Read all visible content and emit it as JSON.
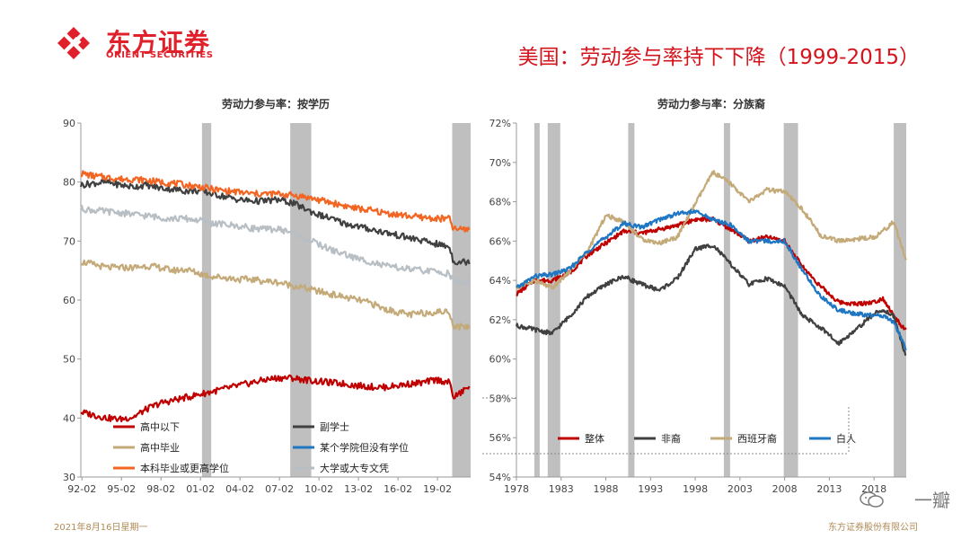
{
  "header": {
    "brand_cn": "东方证券",
    "brand_en": "ORIENT SECURITIES",
    "title": "美国：劳动参与率持下下降（1999-2015）"
  },
  "footer": {
    "date": "2021年8月16日星期一",
    "company": "东方证券股份有限公司",
    "watermark": "一瓣"
  },
  "colors": {
    "brand_red": "#e0202a",
    "title_red": "#d4141c",
    "dark_red": "#c00000",
    "dark_gray": "#404040",
    "tan": "#c4aa78",
    "blue": "#1f77c4",
    "orange": "#f26522",
    "light_gray": "#b7bec4",
    "recession": "#bfbfbf"
  },
  "chart_data": [
    {
      "type": "line",
      "title": "劳动力参与率：按学历",
      "xlabel": "",
      "ylabel": "",
      "x_ticks": [
        "92-02",
        "95-02",
        "98-02",
        "01-02",
        "04-02",
        "07-02",
        "10-02",
        "13-02",
        "16-02",
        "19-02"
      ],
      "y_ticks": [
        30,
        40,
        50,
        60,
        70,
        80,
        90
      ],
      "xlim": [
        1992.0,
        2021.6
      ],
      "ylim": [
        30,
        90
      ],
      "recessions": [
        [
          2001.2,
          2001.9
        ],
        [
          2007.9,
          2009.5
        ],
        [
          2020.2,
          2021.6
        ]
      ],
      "series": [
        {
          "name": "高中以下",
          "color": "#c00000",
          "x": [
            1992,
            1993,
            1994,
            1995,
            1996,
            1997,
            1998,
            1999,
            2000,
            2001,
            2002,
            2003,
            2004,
            2005,
            2006,
            2007,
            2008,
            2009,
            2010,
            2011,
            2012,
            2013,
            2014,
            2015,
            2016,
            2017,
            2018,
            2019,
            2020,
            2020.3,
            2021,
            2021.5
          ],
          "y": [
            41.0,
            40.5,
            40.0,
            39.8,
            40.2,
            41.5,
            42.5,
            43.0,
            43.5,
            44.0,
            44.5,
            45.0,
            45.5,
            46.0,
            46.5,
            46.8,
            46.8,
            46.5,
            46.2,
            46.0,
            45.8,
            45.5,
            45.3,
            45.2,
            45.5,
            45.8,
            46.0,
            46.5,
            46.0,
            43.5,
            44.5,
            45.5
          ]
        },
        {
          "name": "副学士",
          "color": "#404040",
          "x": [
            1992,
            1993,
            1994,
            1995,
            1996,
            1997,
            1998,
            1999,
            2000,
            2001,
            2002,
            2003,
            2004,
            2005,
            2006,
            2007,
            2008,
            2009,
            2010,
            2011,
            2012,
            2013,
            2014,
            2015,
            2016,
            2017,
            2018,
            2019,
            2020,
            2020.3,
            2021,
            2021.5
          ],
          "y": [
            79.5,
            79.8,
            80.0,
            79.5,
            79.2,
            79.5,
            79.0,
            78.8,
            78.5,
            78.5,
            78.0,
            77.5,
            77.0,
            76.8,
            76.8,
            77.0,
            76.5,
            75.5,
            74.5,
            73.8,
            73.0,
            72.5,
            72.0,
            71.5,
            71.0,
            70.5,
            70.0,
            69.5,
            69.0,
            66.5,
            66.5,
            66.5
          ]
        },
        {
          "name": "高中毕业",
          "color": "#c4aa78",
          "x": [
            1992,
            1993,
            1994,
            1995,
            1996,
            1997,
            1998,
            1999,
            2000,
            2001,
            2002,
            2003,
            2004,
            2005,
            2006,
            2007,
            2008,
            2009,
            2010,
            2011,
            2012,
            2013,
            2014,
            2015,
            2016,
            2017,
            2018,
            2019,
            2020,
            2020.3,
            2021,
            2021.5
          ],
          "y": [
            66.5,
            66.0,
            65.5,
            65.5,
            65.5,
            65.8,
            65.5,
            65.0,
            65.2,
            64.5,
            64.0,
            63.8,
            63.5,
            63.5,
            63.2,
            63.0,
            62.5,
            62.0,
            61.5,
            61.0,
            60.5,
            60.0,
            59.5,
            58.5,
            58.0,
            57.5,
            57.8,
            58.0,
            58.0,
            55.5,
            55.5,
            55.5
          ]
        },
        {
          "name": "某个学院但没有学位",
          "color": "#1f77c4",
          "x": [],
          "y": []
        },
        {
          "name": "本科毕业或更高学位",
          "color": "#f26522",
          "x": [
            1992,
            1993,
            1994,
            1995,
            1996,
            1997,
            1998,
            1999,
            2000,
            2001,
            2002,
            2003,
            2004,
            2005,
            2006,
            2007,
            2008,
            2009,
            2010,
            2011,
            2012,
            2013,
            2014,
            2015,
            2016,
            2017,
            2018,
            2019,
            2020,
            2020.3,
            2021,
            2021.5
          ],
          "y": [
            81.5,
            81.0,
            80.8,
            80.5,
            80.5,
            80.3,
            80.0,
            79.8,
            79.5,
            79.2,
            78.8,
            78.5,
            78.3,
            78.0,
            78.0,
            78.0,
            77.8,
            77.5,
            77.0,
            76.5,
            76.0,
            75.5,
            75.2,
            74.8,
            74.5,
            74.2,
            74.0,
            73.8,
            73.8,
            72.0,
            72.0,
            72.0
          ]
        },
        {
          "name": "大学或大专文凭",
          "color": "#b7bec4",
          "x": [
            1992,
            1993,
            1994,
            1995,
            1996,
            1997,
            1998,
            1999,
            2000,
            2001,
            2002,
            2003,
            2004,
            2005,
            2006,
            2007,
            2008,
            2009,
            2010,
            2011,
            2012,
            2013,
            2014,
            2015,
            2016,
            2017,
            2018,
            2019,
            2020,
            2020.3,
            2021,
            2021.5
          ],
          "y": [
            75.5,
            75.2,
            75.0,
            74.8,
            74.5,
            74.3,
            74.0,
            73.8,
            73.8,
            73.5,
            73.0,
            72.8,
            72.5,
            72.2,
            72.0,
            72.0,
            71.5,
            70.5,
            69.5,
            68.5,
            67.8,
            67.0,
            66.5,
            65.8,
            65.5,
            65.2,
            65.0,
            64.8,
            64.5,
            63.0,
            63.0,
            63.0
          ]
        }
      ]
    },
    {
      "type": "line",
      "title": "劳动力参与率：分族裔",
      "xlabel": "",
      "ylabel": "",
      "x_ticks": [
        "1978",
        "1983",
        "1988",
        "1993",
        "1998",
        "2003",
        "2008",
        "2013",
        "2018"
      ],
      "y_ticks": [
        "54%",
        "56%",
        "58%",
        "60%",
        "62%",
        "64%",
        "66%",
        "68%",
        "70%",
        "72%"
      ],
      "xlim": [
        1978,
        2021.6
      ],
      "ylim": [
        54,
        72
      ],
      "recessions": [
        [
          1980.0,
          1980.6
        ],
        [
          1981.5,
          1982.9
        ],
        [
          1990.5,
          1991.2
        ],
        [
          2001.2,
          2001.9
        ],
        [
          2007.9,
          2009.5
        ],
        [
          2020.2,
          2021.6
        ]
      ],
      "series": [
        {
          "name": "整体",
          "color": "#c00000",
          "x": [
            1978,
            1980,
            1982,
            1984,
            1986,
            1988,
            1990,
            1992,
            1994,
            1996,
            1998,
            2000,
            2002,
            2004,
            2006,
            2008,
            2010,
            2012,
            2014,
            2016,
            2018,
            2019,
            2020.2,
            2021.6
          ],
          "y": [
            63.3,
            64.0,
            64.0,
            64.4,
            65.3,
            65.9,
            66.5,
            66.4,
            66.6,
            66.8,
            67.1,
            67.1,
            66.6,
            66.0,
            66.2,
            66.0,
            64.7,
            63.7,
            62.9,
            62.8,
            62.9,
            63.1,
            62.2,
            61.4
          ]
        },
        {
          "name": "非裔",
          "color": "#404040",
          "x": [
            1978,
            1980,
            1982,
            1984,
            1986,
            1988,
            1990,
            1992,
            1994,
            1996,
            1998,
            2000,
            2002,
            2004,
            2006,
            2008,
            2010,
            2012,
            2014,
            2016,
            2018,
            2019,
            2020.2,
            2021.6
          ],
          "y": [
            61.7,
            61.5,
            61.3,
            62.2,
            63.2,
            63.8,
            64.2,
            63.8,
            63.5,
            64.1,
            65.6,
            65.8,
            64.8,
            63.8,
            64.1,
            63.7,
            62.2,
            61.6,
            60.8,
            61.5,
            62.3,
            62.5,
            62.2,
            60.1
          ]
        },
        {
          "name": "西班牙裔",
          "color": "#c4aa78",
          "x": [
            1978,
            1980,
            1982,
            1984,
            1986,
            1988,
            1990,
            1992,
            1994,
            1996,
            1998,
            2000,
            2002,
            2004,
            2006,
            2008,
            2010,
            2012,
            2014,
            2016,
            2018,
            2019,
            2020.2,
            2021.6
          ],
          "y": [
            63.6,
            64.0,
            63.6,
            64.5,
            65.5,
            67.3,
            67.0,
            66.1,
            65.9,
            66.2,
            67.9,
            69.5,
            68.9,
            68.0,
            68.6,
            68.5,
            67.6,
            66.3,
            66.0,
            66.1,
            66.2,
            66.5,
            67.0,
            65.0
          ]
        },
        {
          "name": "白人",
          "color": "#1f77c4",
          "x": [
            1978,
            1980,
            1982,
            1984,
            1986,
            1988,
            1990,
            1992,
            1994,
            1996,
            1998,
            2000,
            2002,
            2004,
            2006,
            2008,
            2010,
            2012,
            2014,
            2016,
            2018,
            2019,
            2020.2,
            2021.6
          ],
          "y": [
            63.6,
            64.2,
            64.3,
            64.6,
            65.5,
            66.2,
            66.9,
            66.7,
            67.1,
            67.4,
            67.5,
            67.1,
            66.8,
            66.0,
            66.0,
            66.0,
            64.5,
            63.2,
            62.5,
            62.3,
            62.2,
            62.2,
            61.9,
            60.5
          ]
        }
      ]
    }
  ]
}
